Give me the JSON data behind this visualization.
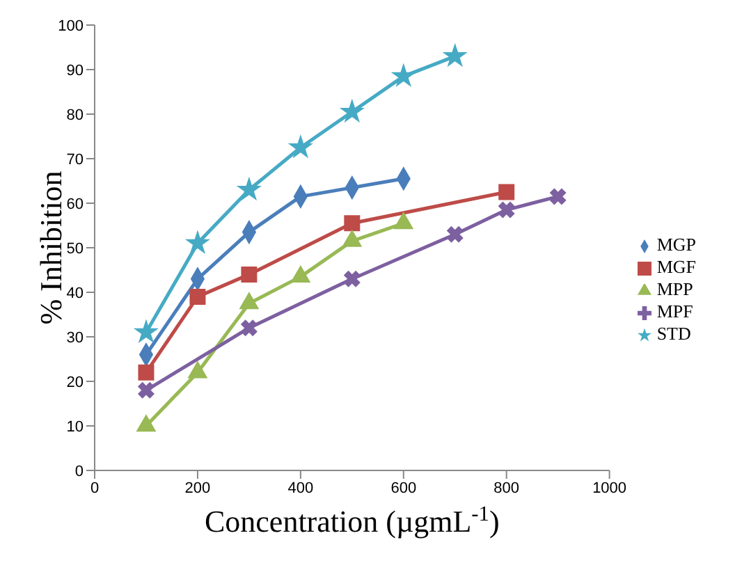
{
  "chart_data": {
    "type": "line",
    "xlabel": "Concentration (µgmL$^{-1}$)",
    "ylabel": "% Inhibition",
    "xlim": [
      0,
      1000
    ],
    "xticks": [
      0,
      200,
      400,
      600,
      800,
      1000
    ],
    "ylim": [
      0,
      100
    ],
    "yticks": [
      0,
      10,
      20,
      30,
      40,
      50,
      60,
      70,
      80,
      90,
      100
    ],
    "grid": false,
    "legend": "right",
    "line_style": "solid",
    "series": [
      {
        "name": "MGP",
        "color": "#4a7ebb",
        "marker": "diamond",
        "x": [
          100,
          200,
          300,
          400,
          500,
          600
        ],
        "values": [
          26,
          43,
          53.5,
          61.5,
          63.5,
          65.5
        ]
      },
      {
        "name": "MGF",
        "color": "#be4b48",
        "marker": "square",
        "x": [
          100,
          200,
          300,
          500,
          800
        ],
        "values": [
          22,
          39,
          44,
          55.5,
          62.5
        ]
      },
      {
        "name": "MPP",
        "color": "#98b954",
        "marker": "triangle",
        "x": [
          100,
          200,
          300,
          400,
          500,
          600
        ],
        "values": [
          10,
          22,
          37.5,
          43.5,
          51.5,
          55.5
        ]
      },
      {
        "name": "MPF",
        "color": "#7d60a0",
        "marker": "cross",
        "x": [
          100,
          300,
          500,
          700,
          800,
          900
        ],
        "values": [
          18,
          32,
          43,
          53,
          58.5,
          61.5
        ]
      },
      {
        "name": "STD",
        "color": "#46aac5",
        "marker": "star",
        "x": [
          100,
          200,
          300,
          400,
          500,
          600,
          700
        ],
        "values": [
          31,
          51,
          63,
          72.5,
          80.5,
          88.5,
          93
        ]
      }
    ]
  }
}
